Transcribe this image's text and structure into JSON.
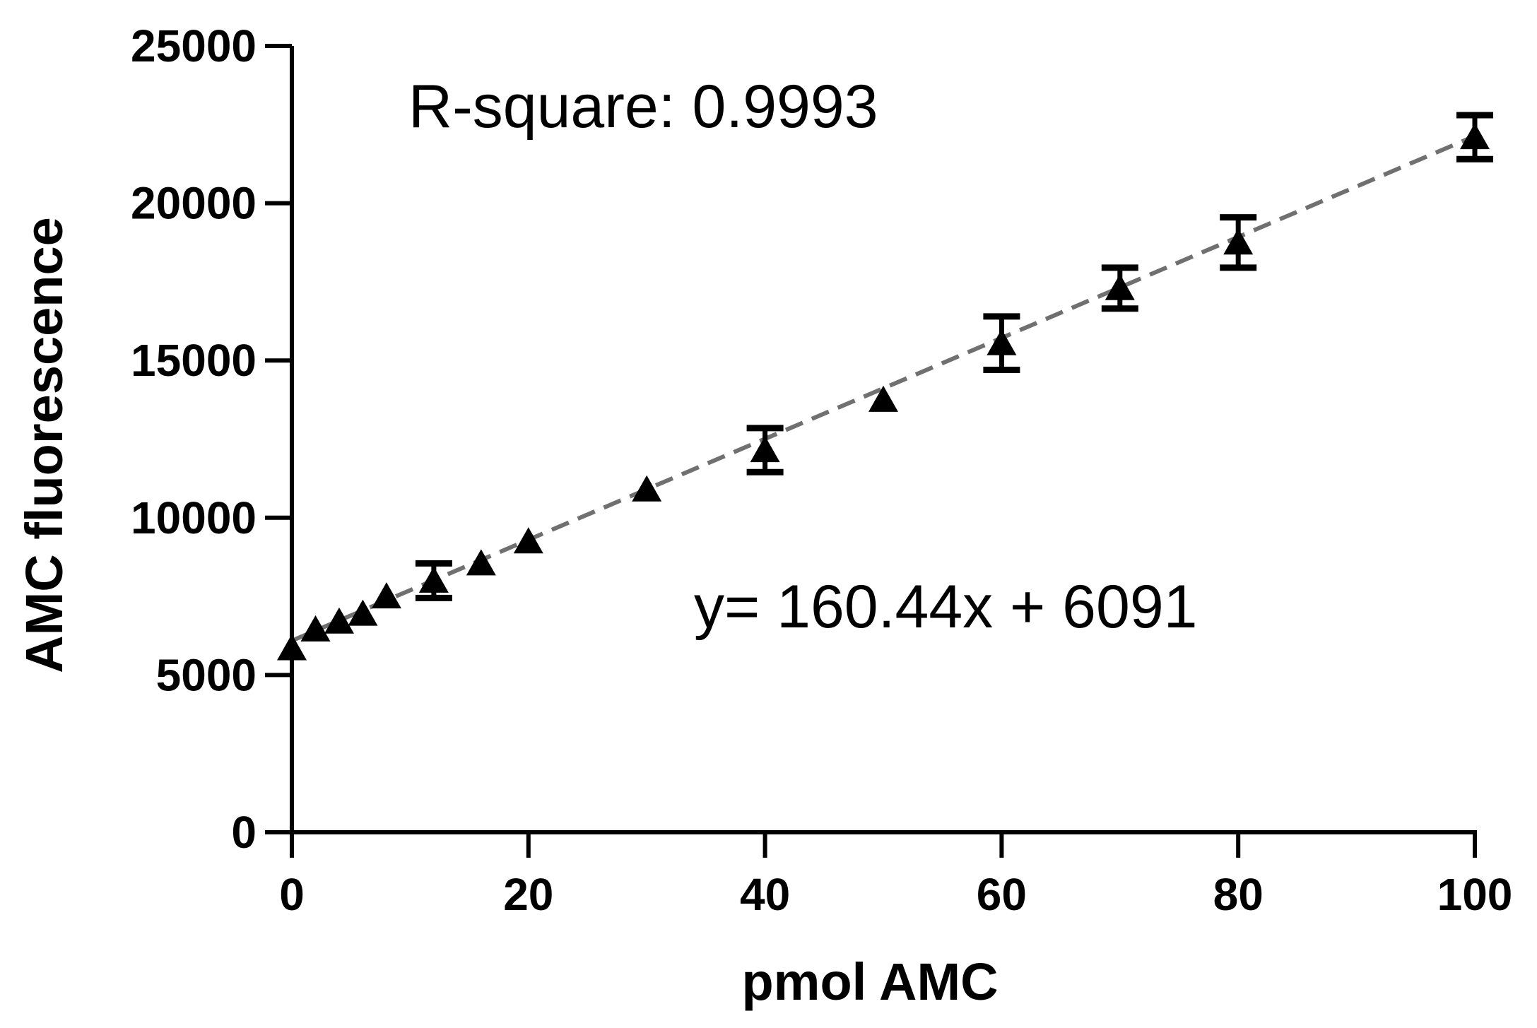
{
  "chart_data": {
    "type": "scatter",
    "title": "",
    "xlabel": "pmol AMC",
    "ylabel": "AMC fluorescence",
    "xlim": [
      0,
      100
    ],
    "ylim": [
      0,
      25000
    ],
    "x_ticks": [
      "0",
      "20",
      "40",
      "60",
      "80",
      "100"
    ],
    "y_ticks": [
      "0",
      "5000",
      "10000",
      "15000",
      "20000",
      "25000"
    ],
    "grid": false,
    "legend": "none",
    "colors": {
      "points": "#000000",
      "fit_line": "#707070",
      "axes": "#000000"
    },
    "series": [
      {
        "marker": "triangle",
        "points": [
          {
            "x": 0,
            "y": 5850
          },
          {
            "x": 2,
            "y": 6450
          },
          {
            "x": 4,
            "y": 6700
          },
          {
            "x": 6,
            "y": 6950
          },
          {
            "x": 8,
            "y": 7500
          },
          {
            "x": 12,
            "y": 8000,
            "err": 550
          },
          {
            "x": 16,
            "y": 8550
          },
          {
            "x": 20,
            "y": 9250
          },
          {
            "x": 30,
            "y": 10900
          },
          {
            "x": 40,
            "y": 12150,
            "err": 700
          },
          {
            "x": 50,
            "y": 13750
          },
          {
            "x": 60,
            "y": 15550,
            "err": 850
          },
          {
            "x": 70,
            "y": 17300,
            "err": 650
          },
          {
            "x": 80,
            "y": 18750,
            "err": 800
          },
          {
            "x": 100,
            "y": 22100,
            "err": 700
          }
        ]
      }
    ],
    "fit": {
      "slope": 160.44,
      "intercept": 6091,
      "x_range": [
        0,
        100
      ],
      "style": "dashed"
    },
    "annotations": {
      "r_square": "R-square: 0.9993",
      "equation": "y= 160.44x + 6091"
    }
  }
}
